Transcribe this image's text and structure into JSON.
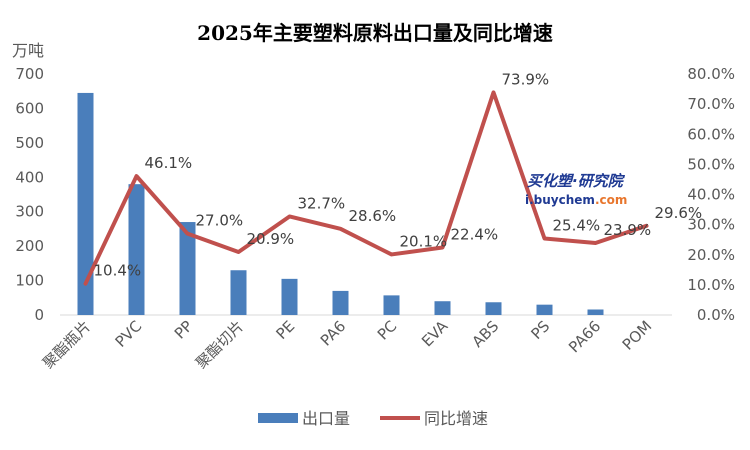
{
  "chart_data": {
    "type": "bar+line",
    "title": "2025年主要塑料原料出口量及同比增速",
    "y_unit": "万吨",
    "categories": [
      "聚酯瓶片",
      "PVC",
      "PP",
      "聚酯切片",
      "PE",
      "PA6",
      "PC",
      "EVA",
      "ABS",
      "PS",
      "PA66",
      "POM"
    ],
    "series": [
      {
        "name": "出口量",
        "type": "bar",
        "axis": "left",
        "color": "#4a7ebb",
        "values": [
          645,
          380,
          270,
          130,
          105,
          70,
          57,
          40,
          37,
          30,
          16,
          0
        ]
      },
      {
        "name": "同比增速",
        "type": "line",
        "axis": "right",
        "color": "#c0504d",
        "values": [
          10.4,
          46.1,
          27.0,
          20.9,
          32.7,
          28.6,
          20.1,
          22.4,
          73.9,
          25.4,
          23.9,
          29.6
        ],
        "labels": [
          "10.4%",
          "46.1%",
          "27.0%",
          "20.9%",
          "32.7%",
          "28.6%",
          "20.1%",
          "22.4%",
          "73.9%",
          "25.4%",
          "23.9%",
          "29.6%"
        ]
      }
    ],
    "left_axis": {
      "min": 0,
      "max": 700,
      "ticks": [
        "0",
        "100",
        "200",
        "300",
        "400",
        "500",
        "600",
        "700"
      ]
    },
    "right_axis": {
      "min": 0,
      "max": 80,
      "ticks": [
        "0.0%",
        "10.0%",
        "20.0%",
        "30.0%",
        "40.0%",
        "50.0%",
        "60.0%",
        "70.0%",
        "80.0%"
      ]
    },
    "grid": false,
    "legend": "bottom",
    "watermark": {
      "line1": "买化塑·研究院",
      "line2a": "i.buychem",
      "line2b": ".com"
    }
  }
}
